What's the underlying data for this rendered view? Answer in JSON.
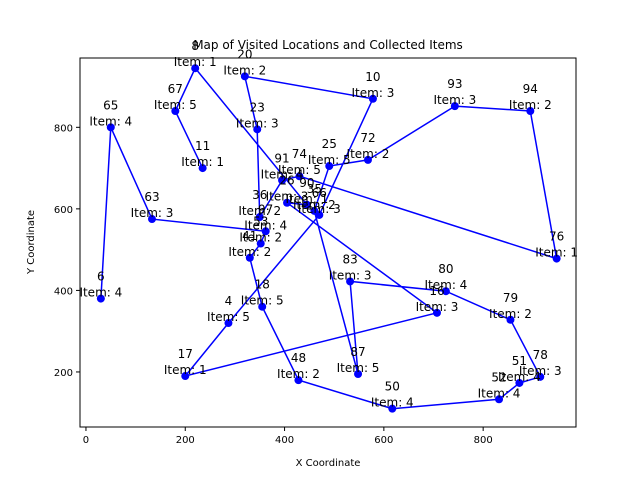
{
  "chart_data": {
    "type": "line",
    "title": "Map of Visited Locations and Collected Items",
    "xlabel": "X Coordinate",
    "ylabel": "Y Coordinate",
    "xlim": [
      -12,
      987
    ],
    "ylim": [
      65,
      970
    ],
    "xticks": [
      0,
      200,
      400,
      600,
      800
    ],
    "yticks": [
      200,
      400,
      600,
      800
    ],
    "grid": false,
    "legend": "none",
    "colors": {
      "line": "#0000ff",
      "marker": "#0000ff",
      "text": "#000000",
      "axes": "#000000"
    },
    "points": [
      {
        "id": "6",
        "x": 30,
        "y": 380,
        "item": "Item: 4"
      },
      {
        "id": "65",
        "x": 50,
        "y": 800,
        "item": "Item: 4"
      },
      {
        "id": "63",
        "x": 133,
        "y": 575,
        "item": "Item: 3"
      },
      {
        "id": "67",
        "x": 180,
        "y": 840,
        "item": "Item: 5"
      },
      {
        "id": "8",
        "x": 220,
        "y": 945,
        "item": "Item: 1"
      },
      {
        "id": "17",
        "x": 200,
        "y": 190,
        "item": "Item: 1"
      },
      {
        "id": "11",
        "x": 235,
        "y": 700,
        "item": "Item: 1"
      },
      {
        "id": "4",
        "x": 287,
        "y": 320,
        "item": "Item: 5"
      },
      {
        "id": "20",
        "x": 320,
        "y": 925,
        "item": "Item: 2"
      },
      {
        "id": "23",
        "x": 345,
        "y": 795,
        "item": "Item: 3"
      },
      {
        "id": "36",
        "x": 350,
        "y": 580,
        "item": "Item: 2"
      },
      {
        "id": "41",
        "x": 330,
        "y": 480,
        "item": "Item: 2"
      },
      {
        "id": "53",
        "x": 352,
        "y": 515,
        "item": "Item: 2"
      },
      {
        "id": "97",
        "x": 362,
        "y": 545,
        "item": "Item: 4"
      },
      {
        "id": "18",
        "x": 355,
        "y": 360,
        "item": "Item: 5"
      },
      {
        "id": "91",
        "x": 395,
        "y": 670,
        "item": "Item: 4"
      },
      {
        "id": "26",
        "x": 405,
        "y": 615,
        "item": "Item: 3"
      },
      {
        "id": "74",
        "x": 430,
        "y": 680,
        "item": "Item: 5"
      },
      {
        "id": "90",
        "x": 445,
        "y": 610,
        "item": "Item: 1"
      },
      {
        "id": "35",
        "x": 460,
        "y": 595,
        "item": "Item: 2"
      },
      {
        "id": "66",
        "x": 470,
        "y": 585,
        "item": "Item: 3"
      },
      {
        "id": "25",
        "x": 490,
        "y": 705,
        "item": "Item: 5"
      },
      {
        "id": "48",
        "x": 428,
        "y": 180,
        "item": "Item: 2"
      },
      {
        "id": "83",
        "x": 532,
        "y": 422,
        "item": "Item: 3"
      },
      {
        "id": "72",
        "x": 568,
        "y": 720,
        "item": "Item: 2"
      },
      {
        "id": "10",
        "x": 578,
        "y": 870,
        "item": "Item: 3"
      },
      {
        "id": "87",
        "x": 548,
        "y": 195,
        "item": "Item: 5"
      },
      {
        "id": "50",
        "x": 617,
        "y": 110,
        "item": "Item: 4"
      },
      {
        "id": "16",
        "x": 707,
        "y": 345,
        "item": "Item: 3"
      },
      {
        "id": "80",
        "x": 725,
        "y": 398,
        "item": "Item: 4"
      },
      {
        "id": "93",
        "x": 743,
        "y": 852,
        "item": "Item: 3"
      },
      {
        "id": "94",
        "x": 895,
        "y": 840,
        "item": "Item: 2"
      },
      {
        "id": "79",
        "x": 855,
        "y": 328,
        "item": "Item: 2"
      },
      {
        "id": "52",
        "x": 832,
        "y": 133,
        "item": "Item: 4"
      },
      {
        "id": "51",
        "x": 873,
        "y": 173,
        "item": "Item: 4"
      },
      {
        "id": "78",
        "x": 915,
        "y": 188,
        "item": "Item: 3"
      },
      {
        "id": "76",
        "x": 948,
        "y": 478,
        "item": "Item: 1"
      }
    ],
    "path": [
      "6",
      "65",
      "63",
      "97",
      "53",
      "41",
      "18",
      "48",
      "50",
      "52",
      "51",
      "78",
      "79",
      "80",
      "83",
      "87",
      "35",
      "25",
      "72",
      "93",
      "94",
      "76",
      "74",
      "91",
      "36",
      "23",
      "20",
      "10",
      "66",
      "4",
      "17",
      "16",
      "26",
      "90",
      "8",
      "67",
      "11"
    ]
  }
}
